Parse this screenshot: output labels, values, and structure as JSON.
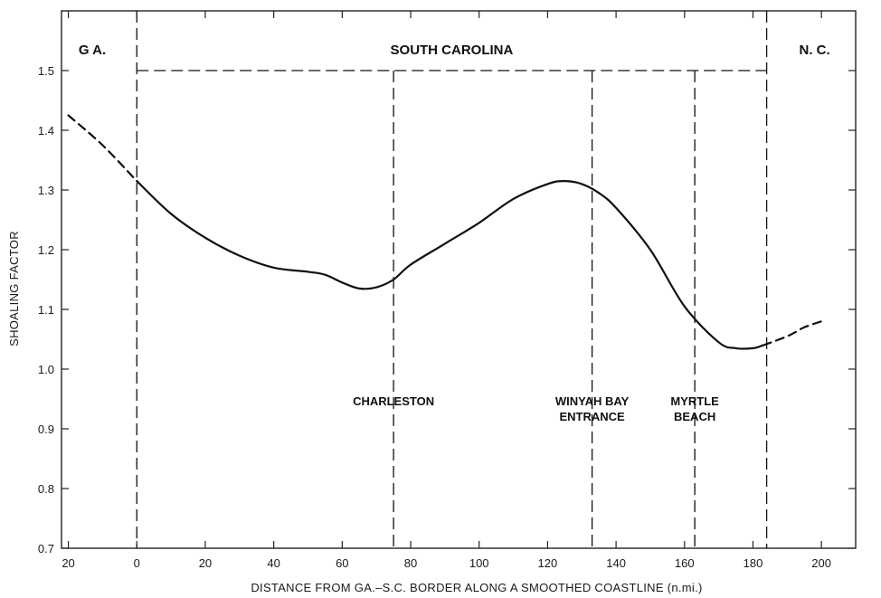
{
  "chart_data": {
    "type": "line",
    "title": "",
    "xlabel": "DISTANCE FROM GA.–S.C. BORDER ALONG A SMOOTHED COASTLINE (n.mi.)",
    "ylabel": "SHOALING FACTOR",
    "xlim": [
      -22,
      210
    ],
    "ylim": [
      0.7,
      1.6
    ],
    "x_ticks": [
      {
        "value": -20,
        "label": "20"
      },
      {
        "value": 0,
        "label": "0"
      },
      {
        "value": 20,
        "label": "20"
      },
      {
        "value": 40,
        "label": "40"
      },
      {
        "value": 60,
        "label": "60"
      },
      {
        "value": 80,
        "label": "80"
      },
      {
        "value": 100,
        "label": "100"
      },
      {
        "value": 120,
        "label": "120"
      },
      {
        "value": 140,
        "label": "140"
      },
      {
        "value": 160,
        "label": "160"
      },
      {
        "value": 180,
        "label": "180"
      },
      {
        "value": 200,
        "label": "200"
      }
    ],
    "y_ticks": [
      {
        "value": 0.7,
        "label": "0.7"
      },
      {
        "value": 0.8,
        "label": "0.8"
      },
      {
        "value": 0.9,
        "label": "0.9"
      },
      {
        "value": 1.0,
        "label": "1.0"
      },
      {
        "value": 1.1,
        "label": "1.1"
      },
      {
        "value": 1.2,
        "label": "1.2"
      },
      {
        "value": 1.3,
        "label": "1.3"
      },
      {
        "value": 1.4,
        "label": "1.4"
      },
      {
        "value": 1.5,
        "label": "1.5"
      }
    ],
    "grid": false,
    "series": [
      {
        "style": "dashed",
        "x": [
          -20,
          -10,
          0
        ],
        "y": [
          1.425,
          1.375,
          1.315
        ]
      },
      {
        "style": "solid",
        "x": [
          0,
          10,
          20,
          30,
          40,
          50,
          55,
          60,
          65,
          70,
          75,
          80,
          90,
          100,
          110,
          120,
          125,
          130,
          135,
          140,
          150,
          160,
          170,
          175,
          180,
          183
        ],
        "y": [
          1.315,
          1.26,
          1.22,
          1.19,
          1.17,
          1.163,
          1.158,
          1.145,
          1.135,
          1.137,
          1.15,
          1.175,
          1.21,
          1.245,
          1.285,
          1.31,
          1.315,
          1.31,
          1.295,
          1.27,
          1.2,
          1.105,
          1.045,
          1.035,
          1.035,
          1.04
        ]
      },
      {
        "style": "dashed",
        "x": [
          183,
          190,
          195,
          200
        ],
        "y": [
          1.04,
          1.055,
          1.07,
          1.08
        ]
      }
    ],
    "region_boundaries": [
      {
        "x": 0,
        "style": "dashed"
      },
      {
        "x": 184,
        "style": "dashed"
      }
    ],
    "region_top_line": {
      "y": 1.5,
      "x_from": 0,
      "x_to": 184,
      "style": "dashed"
    },
    "region_labels": [
      {
        "text": "G A.",
        "x": -13
      },
      {
        "text": "SOUTH CAROLINA",
        "x": 92
      },
      {
        "text": "N. C.",
        "x": 198
      }
    ],
    "markers": [
      {
        "name": "charleston",
        "x": 75,
        "lines": [
          "CHARLESTON"
        ]
      },
      {
        "name": "winyah-bay-entrance",
        "x": 133,
        "lines": [
          "WINYAH BAY",
          "ENTRANCE"
        ]
      },
      {
        "name": "myrtle-beach",
        "x": 163,
        "lines": [
          "MYRTLE",
          "BEACH"
        ]
      }
    ],
    "colors": {
      "line": "#111111",
      "axis": "#222222",
      "background": "#ffffff"
    }
  }
}
